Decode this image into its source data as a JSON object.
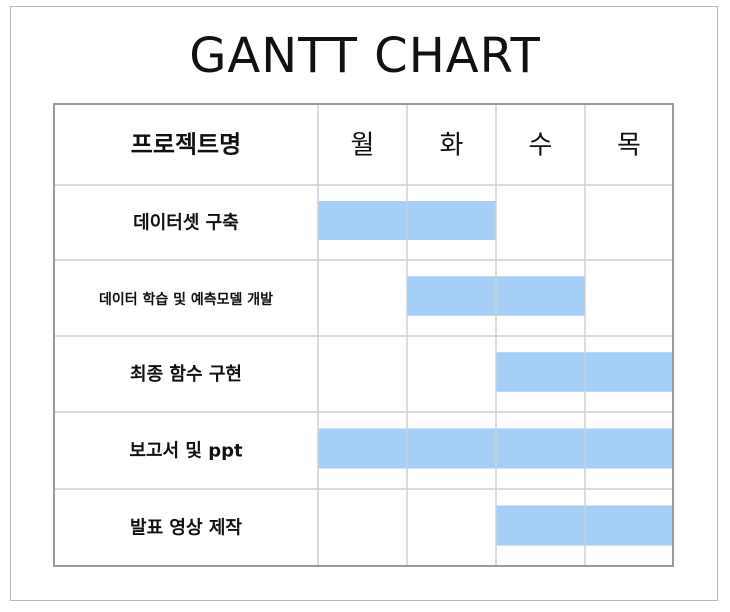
{
  "title": "GANTT CHART",
  "chart_data": {
    "type": "table",
    "title": "GANTT CHART",
    "header": {
      "task_column": "프로젝트명",
      "days": [
        "월",
        "화",
        "수",
        "목"
      ]
    },
    "tasks": [
      {
        "name": "데이터셋 구축",
        "start": 0,
        "end": 2
      },
      {
        "name": "데이터 학습 및 예측모델 개발",
        "start": 1,
        "end": 3
      },
      {
        "name": "최종 함수 구현",
        "start": 2,
        "end": 4
      },
      {
        "name": "보고서 및 ppt",
        "start": 0,
        "end": 4
      },
      {
        "name": "발표 영상 제작",
        "start": 2,
        "end": 4
      }
    ],
    "bar_color": "#a6cff8",
    "grid_color": "#cfcfcf",
    "outer_border_color": "#9a9a9a"
  }
}
